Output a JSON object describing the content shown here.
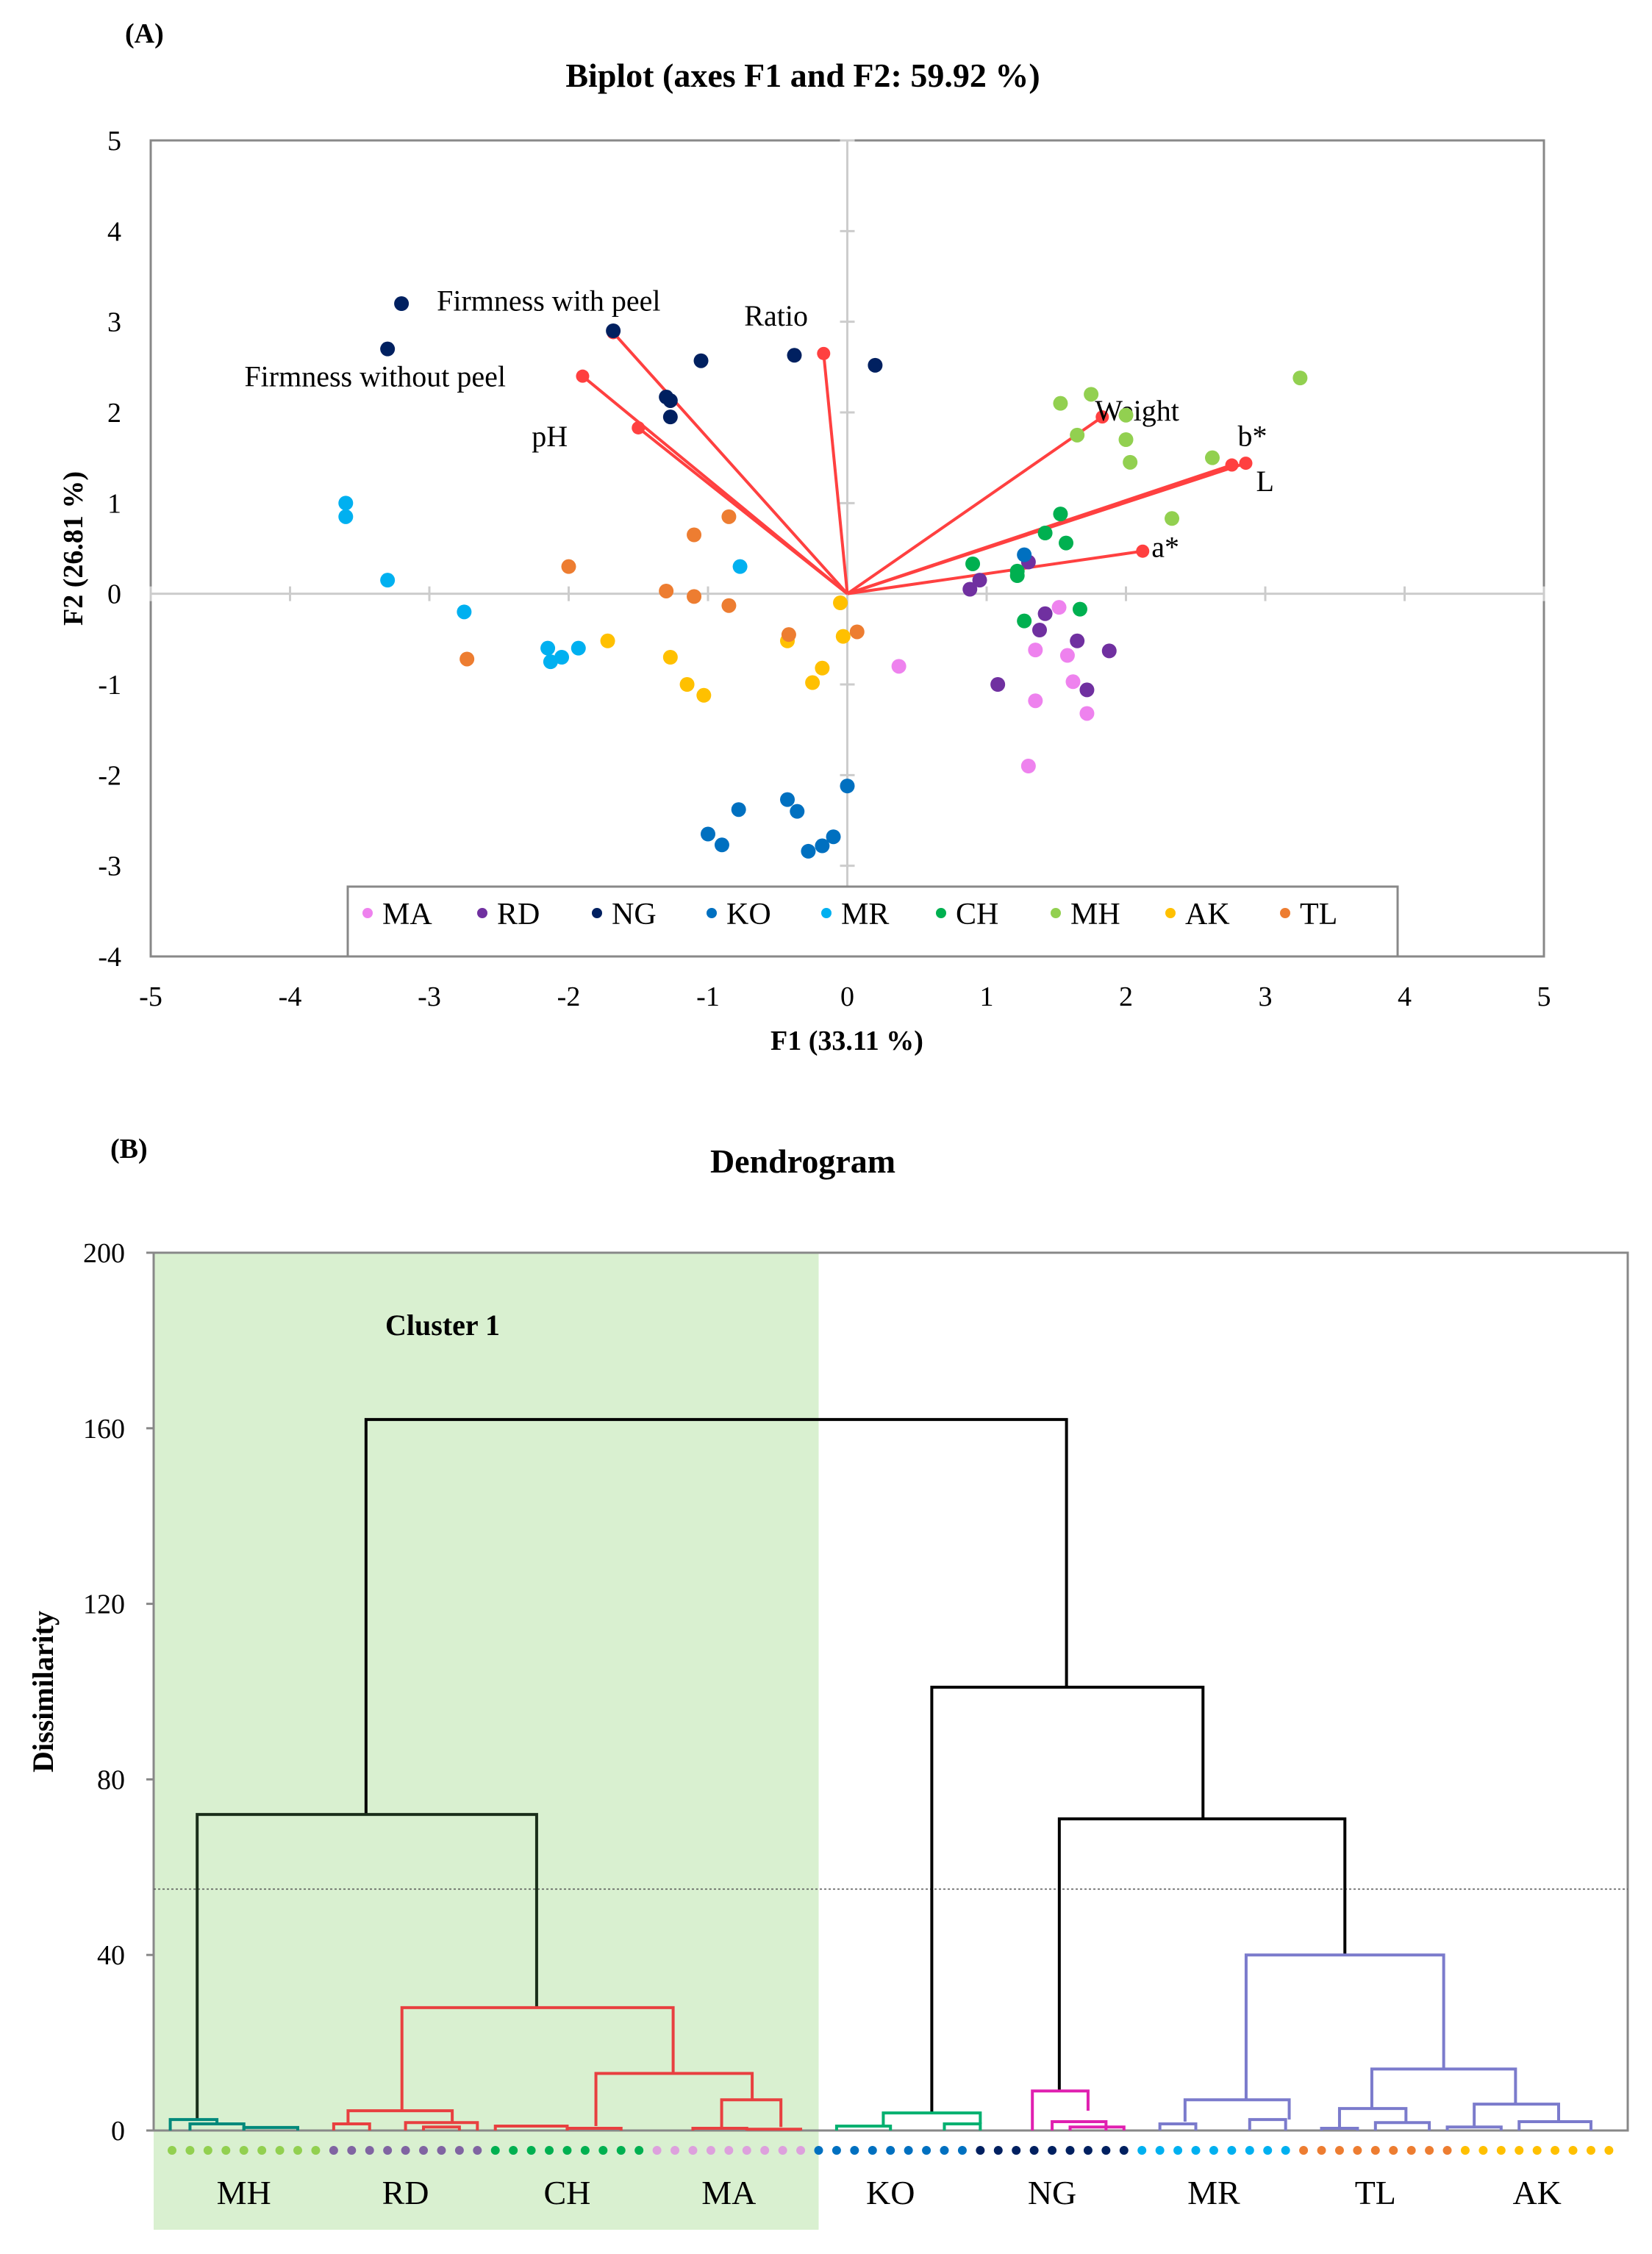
{
  "chart_data": [
    {
      "type": "scatter",
      "panel_label": "(A)",
      "title": "Biplot (axes F1 and F2: 59.92 %)",
      "xlabel": "F1 (33.11 %)",
      "ylabel": "F2 (26.81 %)",
      "xlim": [
        -5,
        5
      ],
      "ylim": [
        -4,
        5
      ],
      "xticks": [
        "-5",
        "-4",
        "-3",
        "-2",
        "-1",
        "0",
        "1",
        "2",
        "3",
        "4",
        "5"
      ],
      "yticks": [
        "-4",
        "-3",
        "-2",
        "-1",
        "0",
        "1",
        "2",
        "3",
        "4",
        "5"
      ],
      "legend_position": "bottom",
      "series": [
        {
          "name": "MA",
          "color": "#ee82ee",
          "points": [
            [
              0.37,
              -0.8
            ],
            [
              1.3,
              -1.9
            ],
            [
              1.35,
              -0.62
            ],
            [
              1.35,
              -1.18
            ],
            [
              1.52,
              -0.15
            ],
            [
              1.58,
              -0.68
            ],
            [
              1.62,
              -0.97
            ],
            [
              1.72,
              -1.32
            ]
          ]
        },
        {
          "name": "RD",
          "color": "#7030a0",
          "points": [
            [
              0.88,
              0.05
            ],
            [
              0.95,
              0.15
            ],
            [
              1.08,
              -1.0
            ],
            [
              1.3,
              0.35
            ],
            [
              1.38,
              -0.4
            ],
            [
              1.42,
              -0.22
            ],
            [
              1.65,
              -0.52
            ],
            [
              1.72,
              -1.06
            ],
            [
              1.88,
              -0.63
            ]
          ]
        },
        {
          "name": "NG",
          "color": "#002060",
          "points": [
            [
              -3.3,
              2.7
            ],
            [
              -3.2,
              3.2
            ],
            [
              -1.68,
              2.9
            ],
            [
              -1.3,
              2.17
            ],
            [
              -1.27,
              2.13
            ],
            [
              -1.27,
              1.95
            ],
            [
              -1.05,
              2.57
            ],
            [
              -0.38,
              2.63
            ],
            [
              0.2,
              2.52
            ]
          ]
        },
        {
          "name": "KO",
          "color": "#0070c0",
          "points": [
            [
              -1.0,
              -2.65
            ],
            [
              -0.9,
              -2.77
            ],
            [
              -0.78,
              -2.38
            ],
            [
              -0.43,
              -2.27
            ],
            [
              -0.36,
              -2.4
            ],
            [
              -0.28,
              -2.84
            ],
            [
              -0.18,
              -2.78
            ],
            [
              -0.1,
              -2.68
            ],
            [
              0.0,
              -2.12
            ],
            [
              1.27,
              0.43
            ]
          ]
        },
        {
          "name": "MR",
          "color": "#00b0f0",
          "points": [
            [
              -3.6,
              1.0
            ],
            [
              -3.6,
              0.85
            ],
            [
              -3.3,
              0.15
            ],
            [
              -2.75,
              -0.2
            ],
            [
              -2.15,
              -0.6
            ],
            [
              -2.13,
              -0.75
            ],
            [
              -2.05,
              -0.7
            ],
            [
              -1.93,
              -0.6
            ],
            [
              -0.77,
              0.3
            ]
          ]
        },
        {
          "name": "CH",
          "color": "#00b050",
          "points": [
            [
              0.9,
              0.33
            ],
            [
              1.22,
              0.25
            ],
            [
              1.22,
              0.2
            ],
            [
              1.27,
              -0.3
            ],
            [
              1.42,
              0.67
            ],
            [
              1.53,
              0.88
            ],
            [
              1.57,
              0.56
            ],
            [
              1.67,
              -0.17
            ]
          ]
        },
        {
          "name": "MH",
          "color": "#92d050",
          "points": [
            [
              1.53,
              2.1
            ],
            [
              1.65,
              1.75
            ],
            [
              1.75,
              2.2
            ],
            [
              2.0,
              1.97
            ],
            [
              2.0,
              1.7
            ],
            [
              2.03,
              1.45
            ],
            [
              2.62,
              1.5
            ],
            [
              2.33,
              0.83
            ],
            [
              3.25,
              2.38
            ]
          ]
        },
        {
          "name": "AK",
          "color": "#ffc000",
          "points": [
            [
              -1.72,
              -0.52
            ],
            [
              -1.27,
              -0.7
            ],
            [
              -1.15,
              -1.0
            ],
            [
              -1.03,
              -1.12
            ],
            [
              -0.43,
              -0.52
            ],
            [
              -0.25,
              -0.98
            ],
            [
              -0.18,
              -0.82
            ],
            [
              -0.05,
              -0.1
            ],
            [
              -0.03,
              -0.47
            ]
          ]
        },
        {
          "name": "TL",
          "color": "#ed7d31",
          "points": [
            [
              -2.73,
              -0.72
            ],
            [
              -2.0,
              0.3
            ],
            [
              -1.3,
              0.03
            ],
            [
              -1.1,
              -0.03
            ],
            [
              -1.1,
              0.65
            ],
            [
              -0.85,
              0.85
            ],
            [
              -0.85,
              -0.13
            ],
            [
              -0.42,
              -0.45
            ],
            [
              0.07,
              -0.42
            ]
          ]
        }
      ],
      "vectors": {
        "color": "#ff4040",
        "items": [
          {
            "name": "Firmness with peel",
            "x": -1.68,
            "y": 2.88
          },
          {
            "name": "Firmness without peel",
            "x": -1.9,
            "y": 2.4
          },
          {
            "name": "pH",
            "x": -1.5,
            "y": 1.83
          },
          {
            "name": "Ratio",
            "x": -0.17,
            "y": 2.65
          },
          {
            "name": "Weight",
            "x": 1.83,
            "y": 1.95
          },
          {
            "name": "b*",
            "x": 2.76,
            "y": 1.42
          },
          {
            "name": "L",
            "x": 2.86,
            "y": 1.44
          },
          {
            "name": "a*",
            "x": 2.12,
            "y": 0.47
          }
        ]
      }
    },
    {
      "type": "dendrogram",
      "panel_label": "(B)",
      "title": "Dendrogram",
      "ylabel": "Dissimilarity",
      "ylim": [
        0,
        200
      ],
      "yticks": [
        "0",
        "40",
        "80",
        "120",
        "160",
        "200"
      ],
      "cut_level": 55,
      "highlight": {
        "label": "Cluster 1",
        "leaf_range": [
          -0.5,
          36
        ],
        "color": "#d9f0d0"
      },
      "groups": [
        {
          "name": "MH",
          "color": "#92d050",
          "leaves": [
            0,
            8
          ]
        },
        {
          "name": "RD",
          "color": "#8064a2",
          "leaves": [
            9,
            17
          ]
        },
        {
          "name": "CH",
          "color": "#00b050",
          "leaves": [
            18,
            26
          ]
        },
        {
          "name": "MA",
          "color": "#dda0dd",
          "leaves": [
            27,
            35
          ]
        },
        {
          "name": "KO",
          "color": "#0070c0",
          "leaves": [
            36,
            44
          ]
        },
        {
          "name": "NG",
          "color": "#002060",
          "leaves": [
            45,
            53
          ]
        },
        {
          "name": "MR",
          "color": "#00b0f0",
          "leaves": [
            54,
            62
          ]
        },
        {
          "name": "TL",
          "color": "#ed7d31",
          "leaves": [
            63,
            71
          ]
        },
        {
          "name": "AK",
          "color": "#ffc000",
          "leaves": [
            72,
            80
          ]
        }
      ],
      "merges": [
        {
          "xl": 10.8,
          "xr": 49.8,
          "hl": 72,
          "hr": 101,
          "h": 162,
          "color": "#000000"
        },
        {
          "xl": 1.4,
          "xr": 20.3,
          "hl": 2.5,
          "hr": 28,
          "h": 72,
          "color": "#1a2e1a"
        },
        {
          "xl": 12.8,
          "xr": 27.9,
          "hl": 4.5,
          "hr": 13,
          "h": 28,
          "color": "#e84040"
        },
        {
          "xl": 9.8,
          "xr": 15.6,
          "hl": 1.5,
          "hr": 1.8,
          "h": 4.5,
          "color": "#e84040"
        },
        {
          "xl": 23.6,
          "xr": 32.3,
          "hl": 1,
          "hr": 7,
          "h": 13,
          "color": "#e84040"
        },
        {
          "xl": 30.6,
          "xr": 33.9,
          "hl": 0.5,
          "hr": 0.8,
          "h": 7,
          "color": "#e84040"
        },
        {
          "xl": -0.1,
          "xr": 2.5,
          "hl": 0,
          "hr": 1.5,
          "h": 2.5,
          "color": "#00897b"
        },
        {
          "xl": 42.3,
          "xr": 57.4,
          "hl": 4,
          "hr": 71,
          "h": 101,
          "color": "#000000"
        },
        {
          "xl": 39.6,
          "xr": 45,
          "hl": 1,
          "hr": 1.5,
          "h": 4,
          "color": "#00b070"
        },
        {
          "xl": 49.4,
          "xr": 65.3,
          "hl": 9,
          "hr": 40,
          "h": 71,
          "color": "#000000"
        },
        {
          "xl": 47.9,
          "xr": 51,
          "hl": 0,
          "hr": 4.5,
          "h": 9,
          "color": "#e020b0"
        },
        {
          "xl": 59.8,
          "xr": 70.8,
          "hl": 7,
          "hr": 14,
          "h": 40,
          "color": "#7b7bcc"
        },
        {
          "xl": 56.4,
          "xr": 62.2,
          "hl": 2,
          "hr": 2.5,
          "h": 7,
          "color": "#7b7bcc"
        },
        {
          "xl": 66.8,
          "xr": 74.8,
          "hl": 5,
          "hr": 6,
          "h": 14,
          "color": "#7b7bcc"
        },
        {
          "xl": 65,
          "xr": 68.7,
          "hl": 0.8,
          "hr": 1.8,
          "h": 5,
          "color": "#7b7bcc"
        },
        {
          "xl": 72.5,
          "xr": 77.2,
          "hl": 0.8,
          "hr": 2,
          "h": 6,
          "color": "#7b7bcc"
        }
      ],
      "minor_merges": [
        {
          "xl": 1,
          "xr": 4,
          "h": 1.5,
          "color": "#00897b"
        },
        {
          "xl": 4,
          "xr": 7,
          "h": 0.7,
          "color": "#00897b"
        },
        {
          "xl": 9,
          "xr": 11,
          "h": 1.5,
          "color": "#e84040"
        },
        {
          "xl": 13,
          "xr": 17,
          "h": 1.8,
          "color": "#e84040"
        },
        {
          "xl": 14,
          "xr": 16,
          "h": 0.8,
          "color": "#e84040"
        },
        {
          "xl": 18,
          "xr": 22,
          "h": 1,
          "color": "#e84040"
        },
        {
          "xl": 22,
          "xr": 25,
          "h": 0.5,
          "color": "#e84040"
        },
        {
          "xl": 29,
          "xr": 32,
          "h": 0.5,
          "color": "#e84040"
        },
        {
          "xl": 32,
          "xr": 35,
          "h": 0.3,
          "color": "#e84040"
        },
        {
          "xl": 37,
          "xr": 40,
          "h": 1,
          "color": "#00b070"
        },
        {
          "xl": 43,
          "xr": 45,
          "h": 1.5,
          "color": "#00b070"
        },
        {
          "xl": 49,
          "xr": 52,
          "h": 2,
          "color": "#e020b0"
        },
        {
          "xl": 50,
          "xr": 53,
          "h": 0.8,
          "color": "#e020b0"
        },
        {
          "xl": 55,
          "xr": 57,
          "h": 1.5,
          "color": "#7b7bcc"
        },
        {
          "xl": 60,
          "xr": 62,
          "h": 2.5,
          "color": "#7b7bcc"
        },
        {
          "xl": 64,
          "xr": 66,
          "h": 0.5,
          "color": "#7b7bcc"
        },
        {
          "xl": 67,
          "xr": 70,
          "h": 1.8,
          "color": "#7b7bcc"
        },
        {
          "xl": 71,
          "xr": 74,
          "h": 0.8,
          "color": "#7b7bcc"
        },
        {
          "xl": 75,
          "xr": 79,
          "h": 2,
          "color": "#7b7bcc"
        }
      ]
    }
  ]
}
